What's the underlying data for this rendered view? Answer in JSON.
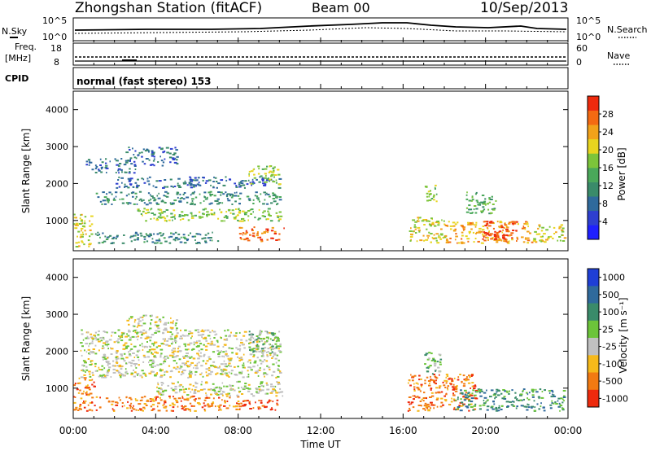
{
  "header": {
    "station": "Zhongshan Station (fitACF)",
    "beam": "Beam 00",
    "date": "10/Sep/2013"
  },
  "noise_panel": {
    "left_label": "N.Sky",
    "right_label": "N.Search",
    "left_ticks": [
      "10^5",
      "10^0"
    ],
    "right_ticks": [
      "10^5",
      "10^0"
    ]
  },
  "freq_panel": {
    "left_label_1": "Freq.",
    "left_label_2": "[MHz]",
    "right_label": "Nave",
    "left_ticks": [
      "18",
      "8"
    ],
    "right_ticks": [
      "60",
      "0"
    ]
  },
  "cpid_panel": {
    "label": "CPID",
    "value": "normal (fast stereo) 153"
  },
  "x_axis": {
    "label": "Time UT",
    "ticks": [
      "00:00",
      "04:00",
      "08:00",
      "12:00",
      "16:00",
      "20:00",
      "00:00"
    ]
  },
  "chart_data": [
    {
      "type": "heatmap",
      "name": "power",
      "ylabel": "Slant Range [km]",
      "y_ticks": [
        1000,
        2000,
        3000,
        4000
      ],
      "ylim": [
        180,
        4500
      ],
      "xlim_hours": [
        0,
        24
      ],
      "colorbar": {
        "label": "Power [dB]",
        "ticks": [
          "4",
          "8",
          "12",
          "16",
          "20",
          "24",
          "28"
        ],
        "colors": [
          "#1f20ff",
          "#2e3fd0",
          "#2f6a9c",
          "#3a8b6a",
          "#4aa85a",
          "#7cc43a",
          "#e8d51f",
          "#f2a21a",
          "#f46a12",
          "#ee2a0d"
        ]
      },
      "patches": [
        {
          "t0": 0.0,
          "t1": 0.9,
          "r0": 300,
          "r1": 1200,
          "level": 6
        },
        {
          "t0": 0.6,
          "t1": 3.0,
          "r0": 2300,
          "r1": 2700,
          "level": 2
        },
        {
          "t0": 1.0,
          "t1": 10.0,
          "r0": 1450,
          "r1": 1800,
          "level": 3
        },
        {
          "t0": 2.0,
          "t1": 10.0,
          "r0": 1900,
          "r1": 2200,
          "level": 2
        },
        {
          "t0": 3.0,
          "t1": 10.0,
          "r0": 1000,
          "r1": 1350,
          "level": 5
        },
        {
          "t0": 8.5,
          "t1": 10.0,
          "r0": 2000,
          "r1": 2500,
          "level": 5
        },
        {
          "t0": 2.5,
          "t1": 5.0,
          "r0": 2500,
          "r1": 3000,
          "level": 2
        },
        {
          "t0": 1.0,
          "t1": 7.0,
          "r0": 400,
          "r1": 700,
          "level": 3
        },
        {
          "t0": 8.0,
          "t1": 10.2,
          "r0": 450,
          "r1": 850,
          "level": 8
        },
        {
          "t0": 16.2,
          "t1": 18.0,
          "r0": 400,
          "r1": 1100,
          "level": 6
        },
        {
          "t0": 17.0,
          "t1": 17.6,
          "r0": 1400,
          "r1": 2000,
          "level": 5
        },
        {
          "t0": 18.0,
          "t1": 22.5,
          "r0": 400,
          "r1": 1000,
          "level": 7
        },
        {
          "t0": 19.8,
          "t1": 21.5,
          "r0": 500,
          "r1": 1000,
          "level": 9
        },
        {
          "t0": 19.0,
          "t1": 20.5,
          "r0": 1200,
          "r1": 1800,
          "level": 4
        },
        {
          "t0": 22.3,
          "t1": 23.8,
          "r0": 400,
          "r1": 900,
          "level": 6
        }
      ]
    },
    {
      "type": "heatmap",
      "name": "velocity",
      "ylabel": "Slant Range [km]",
      "y_ticks": [
        1000,
        2000,
        3000,
        4000
      ],
      "ylim": [
        180,
        4500
      ],
      "xlim_hours": [
        0,
        24
      ],
      "colorbar": {
        "label": "Velocity [m s⁻¹]",
        "ticks": [
          "1000",
          "500",
          "100",
          "25",
          "-25",
          "-100",
          "-500",
          "-1000"
        ],
        "colors": [
          "#1f3fd6",
          "#2f6a9c",
          "#3a8b6a",
          "#6cc43a",
          "#c0c0c0",
          "#f6b91a",
          "#f27a12",
          "#ee2a0d"
        ]
      },
      "patches": [
        {
          "t0": 0.3,
          "t1": 10.0,
          "r0": 1300,
          "r1": 2600,
          "level": 4
        },
        {
          "t0": 2.5,
          "t1": 5.0,
          "r0": 2500,
          "r1": 3000,
          "level": 4
        },
        {
          "t0": 8.5,
          "t1": 10.0,
          "r0": 2000,
          "r1": 2600,
          "level": 3
        },
        {
          "t0": 0.0,
          "t1": 1.0,
          "r0": 400,
          "r1": 1300,
          "level": 6
        },
        {
          "t0": 1.0,
          "t1": 8.0,
          "r0": 400,
          "r1": 800,
          "level": 6
        },
        {
          "t0": 4.0,
          "t1": 10.2,
          "r0": 800,
          "r1": 1200,
          "level": 4
        },
        {
          "t0": 8.0,
          "t1": 10.2,
          "r0": 400,
          "r1": 700,
          "level": 7
        },
        {
          "t0": 16.2,
          "t1": 19.5,
          "r0": 400,
          "r1": 1400,
          "level": 6
        },
        {
          "t0": 18.5,
          "t1": 23.8,
          "r0": 400,
          "r1": 1000,
          "level": 2
        },
        {
          "t0": 17.0,
          "t1": 17.8,
          "r0": 1400,
          "r1": 2000,
          "level": 3
        }
      ]
    }
  ]
}
